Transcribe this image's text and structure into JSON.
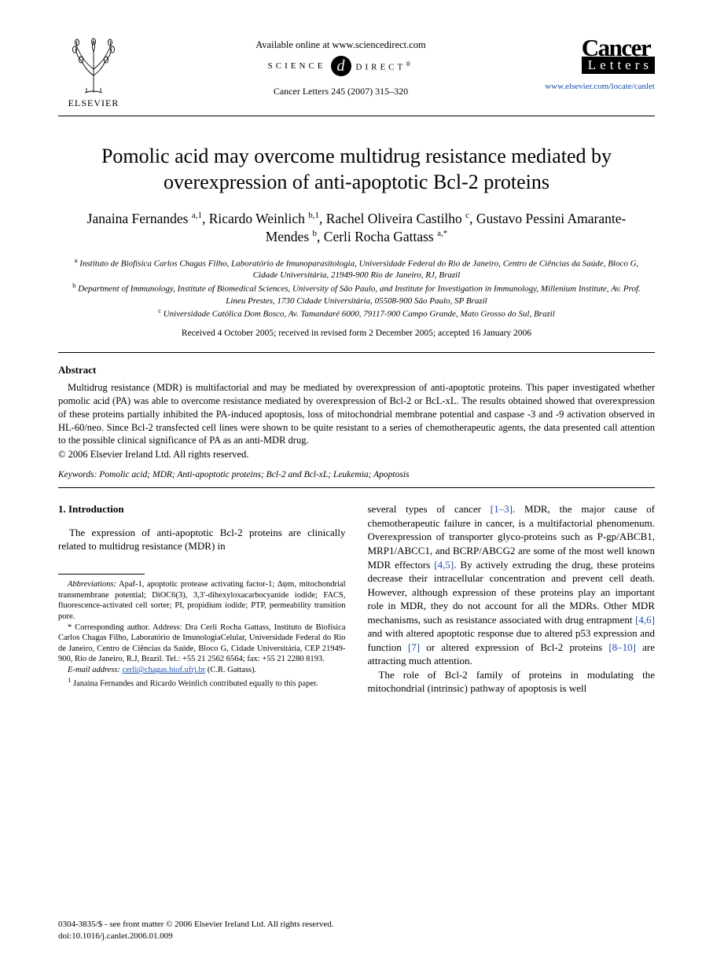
{
  "header": {
    "publisher_name": "ELSEVIER",
    "available_text": "Available online at www.sciencedirect.com",
    "sd_left": "SCIENCE",
    "sd_right": "DIRECT",
    "sd_badge": "d",
    "sd_reg": "®",
    "citation": "Cancer Letters 245 (2007) 315–320",
    "journal_word1": "Cancer",
    "journal_word2": "Letters",
    "journal_url": "www.elsevier.com/locate/canlet"
  },
  "title": "Pomolic acid may overcome multidrug resistance mediated by overexpression of anti-apoptotic Bcl-2 proteins",
  "authors_html": "Janaina Fernandes <sup>a,1</sup>, Ricardo Weinlich <sup>b,1</sup>, Rachel Oliveira Castilho <sup>c</sup>, Gustavo Pessini Amarante-Mendes <sup>b</sup>, Cerli Rocha Gattass <sup>a,*</sup>",
  "affiliations": {
    "a": "Instituto de Biofísica Carlos Chagas Filho, Laboratório de Imunoparasitologia, Universidade Federal do Rio de Janeiro, Centro de Ciências da Saúde, Bloco G, Cidade Universitária, 21949-900 Rio de Janeiro, RJ, Brazil",
    "b": "Department of Immunology, Institute of Biomedical Sciences, University of São Paulo, and Institute for Investigation in Immunology, Millenium Institute, Av. Prof. Lineu Prestes, 1730 Cidade Universitária, 05508-900 São Paulo, SP Brazil",
    "c": "Universidade Católica Dom Bosco, Av. Tamandaré 6000, 79117-900 Campo Grande, Mato Grosso do Sul, Brazil"
  },
  "dates": "Received 4 October 2005; received in revised form 2 December 2005; accepted 16 January 2006",
  "abstract": {
    "heading": "Abstract",
    "body": "Multidrug resistance (MDR) is multifactorial and may be mediated by overexpression of anti-apoptotic proteins. This paper investigated whether pomolic acid (PA) was able to overcome resistance mediated by overexpression of Bcl-2 or BcL-xL. The results obtained showed that overexpression of these proteins partially inhibited the PA-induced apoptosis, loss of mitochondrial membrane potential and caspase -3 and -9 activation observed in HL-60/neo. Since Bcl-2 transfected cell lines were shown to be quite resistant to a series of chemotherapeutic agents, the data presented call attention to the possible clinical significance of PA as an anti-MDR drug.",
    "copyright": "© 2006 Elsevier Ireland Ltd. All rights reserved."
  },
  "keywords": {
    "label": "Keywords:",
    "text": " Pomolic acid; MDR; Anti-apoptotic proteins; Bcl-2 and Bcl-xL; Leukemia; Apoptosis"
  },
  "intro": {
    "heading": "1. Introduction",
    "left_para": "The expression of anti-apoptotic Bcl-2 proteins are clinically related to multidrug resistance (MDR) in",
    "right_para1_a": "several types of cancer ",
    "right_ref1": "[1–3]",
    "right_para1_b": ". MDR, the major cause of chemotherapeutic failure in cancer, is a multifactorial phenomenum. Overexpression of transporter glyco-proteins such as P-gp/ABCB1, MRP1/ABCC1, and BCRP/ABCG2 are some of the most well known MDR effectors ",
    "right_ref2": "[4,5]",
    "right_para1_c": ". By actively extruding the drug, these proteins decrease their intracellular concentration and prevent cell death. However, although expression of these proteins play an important role in MDR, they do not account for all the MDRs. Other MDR mechanisms, such as resistance associated with drug entrapment ",
    "right_ref3": "[4,6]",
    "right_para1_d": " and with altered apoptotic response due to altered p53 expression and function ",
    "right_ref4": "[7]",
    "right_para1_e": " or altered expression of Bcl-2 proteins ",
    "right_ref5": "[8–10]",
    "right_para1_f": " are attracting much attention.",
    "right_para2": "The role of Bcl-2 family of proteins in modulating the mitochondrial (intrinsic) pathway of apoptosis is well"
  },
  "footnotes": {
    "abbrev_label": "Abbreviations:",
    "abbrev_text": " Apaf-1, apoptotic protease activating factor-1; Δψm, mitochondrial transmembrane potential; DiOC6(3), 3,3′-dihexyloxacarbocyanide iodide; FACS, fluorescence-activated cell sorter; PI, propidium iodide; PTP, permeability transition pore.",
    "corr_marker": "*",
    "corr_text": " Corresponding author. Address: Dra Cerli Rocha Gattass, Instituto de Biofísica Carlos Chagas Filho, Laboratório de ImunologiaCelular, Universidade Federal do Rio de Janeiro, Centro de Ciências da Saúde, Bloco G, Cidade Universitária, CEP 21949-900, Rio de Janeiro, R.J, Brazil. Tel.: +55 21 2562 6564; fax: +55 21 2280 8193.",
    "email_label": "E-mail address:",
    "email": "cerli@chagas.biof.ufrj.br",
    "email_suffix": " (C.R. Gattass).",
    "note1_marker": "1",
    "note1_text": " Janaina Fernandes and Ricardo Weinlich contributed equally to this paper."
  },
  "bottom": {
    "line1": "0304-3835/$ - see front matter © 2006 Elsevier Ireland Ltd. All rights reserved.",
    "line2": "doi:10.1016/j.canlet.2006.01.009"
  },
  "colors": {
    "link": "#1b4faf",
    "text": "#000000",
    "background": "#ffffff"
  }
}
